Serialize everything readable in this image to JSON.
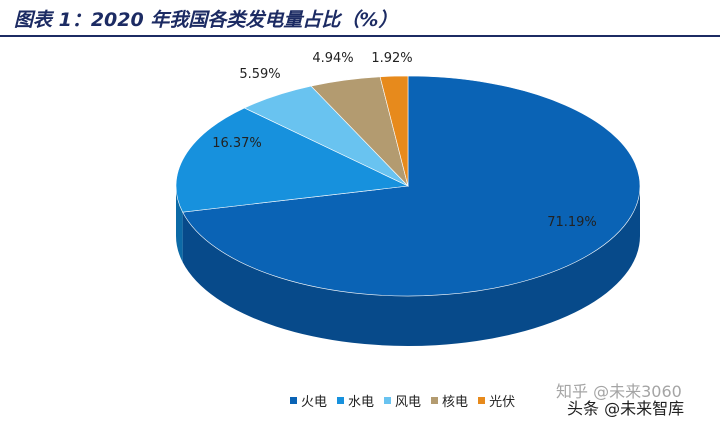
{
  "title": "图表 1：2020 年我国各类发电量占比（%）",
  "watermark": {
    "line1": "知乎 @未来3060",
    "line2": "头条 @未来智库"
  },
  "chart_data": {
    "type": "pie",
    "categories": [
      "火电",
      "水电",
      "风电",
      "核电",
      "光伏"
    ],
    "values": [
      71.19,
      16.37,
      5.59,
      4.94,
      1.92
    ],
    "labels": [
      "71.19%",
      "16.37%",
      "5.59%",
      "4.94%",
      "1.92%"
    ],
    "colors": [
      "#0a63b5",
      "#1791dd",
      "#69c3f0",
      "#b39b70",
      "#e78a1c"
    ],
    "side_colors": [
      "#074a8a",
      "#0c6aa6",
      "#3c93bf",
      "#7d6a45",
      "#a65f10"
    ],
    "legend_placement": "bottom",
    "style": "3d"
  }
}
